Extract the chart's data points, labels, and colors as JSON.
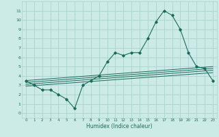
{
  "title": "",
  "xlabel": "Humidex (Indice chaleur)",
  "xlim": [
    -0.5,
    23.5
  ],
  "ylim": [
    -0.5,
    12.0
  ],
  "yticks": [
    0,
    1,
    2,
    3,
    4,
    5,
    6,
    7,
    8,
    9,
    10,
    11
  ],
  "xticks": [
    0,
    1,
    2,
    3,
    4,
    5,
    6,
    7,
    8,
    9,
    10,
    11,
    12,
    13,
    14,
    15,
    16,
    17,
    18,
    19,
    20,
    21,
    22,
    23
  ],
  "bg_color": "#cceae6",
  "grid_color": "#aad4ce",
  "line_color": "#1a6b5a",
  "main_x": [
    0,
    1,
    2,
    3,
    4,
    5,
    6,
    7,
    8,
    9,
    10,
    11,
    12,
    13,
    14,
    15,
    16,
    17,
    18,
    19,
    20,
    21,
    22,
    23
  ],
  "main_y": [
    3.5,
    3.0,
    2.5,
    2.5,
    2.0,
    1.5,
    0.5,
    3.0,
    3.5,
    4.0,
    5.5,
    6.5,
    6.2,
    6.5,
    6.5,
    8.0,
    9.8,
    11.0,
    10.5,
    9.0,
    6.5,
    5.0,
    4.8,
    3.5
  ],
  "lines": [
    {
      "x0": 0,
      "y0": 3.5,
      "x1": 23,
      "y1": 5.0
    },
    {
      "x0": 0,
      "y0": 3.3,
      "x1": 23,
      "y1": 4.8
    },
    {
      "x0": 0,
      "y0": 3.1,
      "x1": 23,
      "y1": 4.6
    },
    {
      "x0": 0,
      "y0": 2.9,
      "x1": 23,
      "y1": 4.35
    }
  ]
}
